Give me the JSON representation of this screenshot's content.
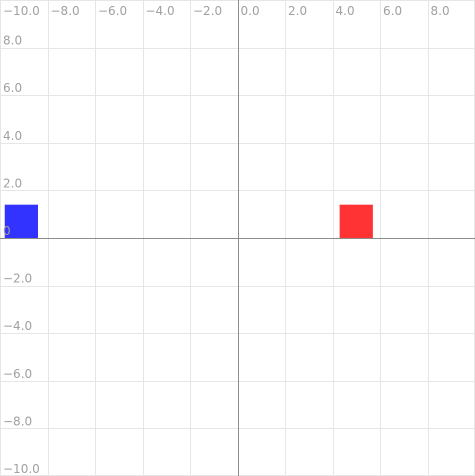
{
  "plane": {
    "x_range": [
      -10,
      10
    ],
    "y_range": [
      -10,
      10
    ],
    "grid_step": 2,
    "x_tick_labels": [
      "−10.0",
      "−8.0",
      "−6.0",
      "−4.0",
      "−2.0",
      "0.0",
      "2.0",
      "4.0",
      "6.0",
      "8.0"
    ],
    "x_tick_values": [
      -10,
      -8,
      -6,
      -4,
      -2,
      0,
      2,
      4,
      6,
      8
    ],
    "y_tick_labels": [
      "8.0",
      "6.0",
      "4.0",
      "2.0",
      "0",
      "−2.0",
      "−4.0",
      "−6.0",
      "−8.0",
      "−10.0"
    ],
    "y_tick_values": [
      8,
      6,
      4,
      2,
      0,
      -2,
      -4,
      -6,
      -8,
      -10
    ],
    "colors": {
      "grid": "#e6e6e6",
      "axis": "#8c8c8c",
      "label": "#a0a0a0"
    }
  },
  "objects": [
    {
      "name": "blue-square",
      "color": "#3333ff",
      "x_min": -9.8,
      "x_max": -8.4,
      "y_min": 0,
      "y_max": 1.4
    },
    {
      "name": "red-square",
      "color": "#ff3333",
      "x_min": 4.3,
      "x_max": 5.7,
      "y_min": 0,
      "y_max": 1.4
    }
  ]
}
